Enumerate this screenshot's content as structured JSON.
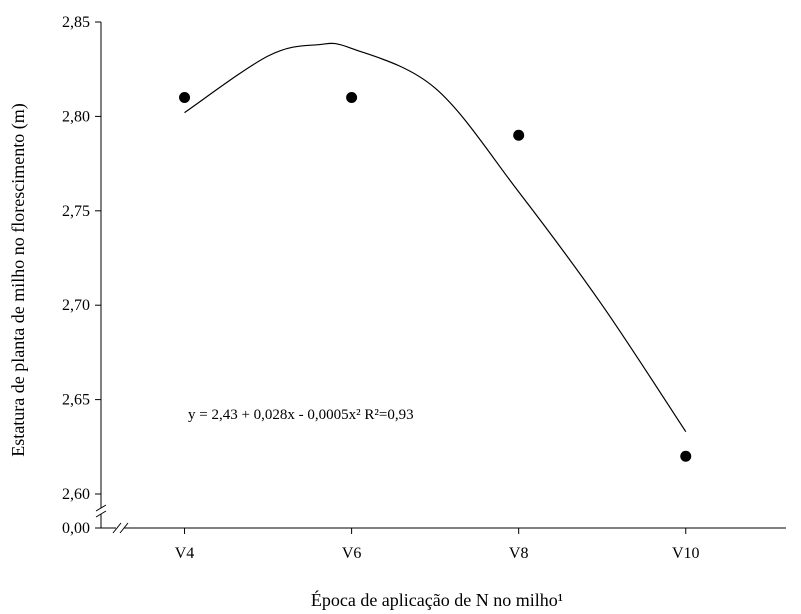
{
  "chart_data": {
    "type": "scatter",
    "xlabel": "Época de aplicação de N no milho¹",
    "ylabel": "Estatura de planta de milho no florescimento (m)",
    "categories": [
      "V4",
      "V6",
      "V8",
      "V10"
    ],
    "x_positions": [
      4,
      6,
      8,
      10
    ],
    "ylim": [
      2.6,
      2.85
    ],
    "axis_break_label": "0,00",
    "y_ticks": [
      {
        "value": 2.6,
        "label": "2,60"
      },
      {
        "value": 2.65,
        "label": "2,65"
      },
      {
        "value": 2.7,
        "label": "2,70"
      },
      {
        "value": 2.75,
        "label": "2,75"
      },
      {
        "value": 2.8,
        "label": "2,80"
      },
      {
        "value": 2.85,
        "label": "2,85"
      }
    ],
    "series": [
      {
        "type": "scatter",
        "x": [
          4,
          6,
          8,
          10
        ],
        "y": [
          2.81,
          2.81,
          2.79,
          2.62
        ]
      },
      {
        "type": "line",
        "x": [
          4,
          5,
          5.6,
          6,
          7,
          8,
          9,
          10
        ],
        "y": [
          2.802,
          2.832,
          2.838,
          2.836,
          2.815,
          2.76,
          2.7,
          2.633
        ]
      }
    ],
    "annotation": "y = 2,43 + 0,028x - 0,0005x²  R²=0,93",
    "grid": false
  }
}
